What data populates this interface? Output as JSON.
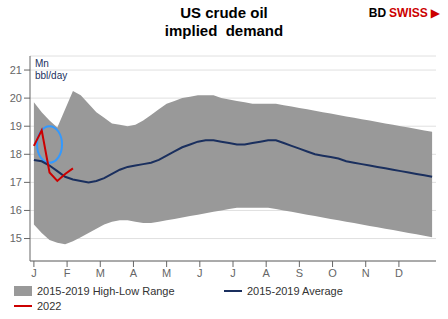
{
  "chart_data": {
    "type": "line",
    "title": "US crude oil\nimplied  demand",
    "ylabel": "Mn\nbbl/day",
    "x": [
      0,
      1,
      2,
      3,
      4,
      5,
      6,
      7,
      8,
      9,
      10,
      11,
      12,
      13,
      14,
      15,
      16,
      17,
      18,
      19,
      20,
      21,
      22,
      23,
      24,
      25,
      26,
      27,
      28,
      29,
      30,
      31,
      32,
      33,
      34,
      35,
      36,
      37,
      38,
      39,
      40,
      41,
      42,
      43,
      44,
      45,
      46,
      47,
      48,
      49,
      50,
      51
    ],
    "xlim": [
      -0.5,
      51.5
    ],
    "xticks": [
      {
        "value": 0,
        "label": "J"
      },
      {
        "value": 4.25,
        "label": "F"
      },
      {
        "value": 8.5,
        "label": "M"
      },
      {
        "value": 12.75,
        "label": "A"
      },
      {
        "value": 17,
        "label": "M"
      },
      {
        "value": 21.25,
        "label": "J"
      },
      {
        "value": 25.5,
        "label": "J"
      },
      {
        "value": 29.75,
        "label": "A"
      },
      {
        "value": 34,
        "label": "S"
      },
      {
        "value": 38.25,
        "label": "O"
      },
      {
        "value": 42.5,
        "label": "N"
      },
      {
        "value": 46.75,
        "label": "D"
      }
    ],
    "ylim": [
      14.2,
      21.5
    ],
    "yticks": [
      15,
      16,
      17,
      18,
      19,
      20,
      21
    ],
    "grid": true,
    "legend": "bottom",
    "series": [
      {
        "name": "2015-2019 High-Low Range",
        "type": "band",
        "color": "#999999",
        "low": [
          15.5,
          15.2,
          14.95,
          14.85,
          14.8,
          14.9,
          15.05,
          15.2,
          15.35,
          15.5,
          15.6,
          15.65,
          15.65,
          15.6,
          15.55,
          15.55,
          15.6,
          15.65,
          15.7,
          15.75,
          15.8,
          15.85,
          15.9,
          15.95,
          16.0,
          16.05,
          16.1,
          16.1,
          16.1,
          16.1,
          16.1,
          16.05,
          16.0,
          15.95,
          15.9,
          15.85,
          15.8,
          15.75,
          15.7,
          15.65,
          15.6,
          15.55,
          15.5,
          15.45,
          15.4,
          15.35,
          15.3,
          15.25,
          15.2,
          15.15,
          15.1,
          15.05
        ],
        "high": [
          19.85,
          19.5,
          19.2,
          18.95,
          19.6,
          20.25,
          20.1,
          19.8,
          19.5,
          19.3,
          19.1,
          19.05,
          19.0,
          19.05,
          19.2,
          19.4,
          19.6,
          19.8,
          19.9,
          20.0,
          20.05,
          20.1,
          20.1,
          20.1,
          20.0,
          19.95,
          19.9,
          19.85,
          19.8,
          19.8,
          19.8,
          19.8,
          19.75,
          19.7,
          19.65,
          19.6,
          19.55,
          19.5,
          19.45,
          19.4,
          19.35,
          19.3,
          19.25,
          19.2,
          19.15,
          19.1,
          19.05,
          19.0,
          18.95,
          18.9,
          18.85,
          18.8
        ]
      },
      {
        "name": "2015-2019 Average",
        "type": "line",
        "color": "#1a2f5e",
        "values": [
          17.8,
          17.75,
          17.6,
          17.4,
          17.2,
          17.1,
          17.05,
          17.0,
          17.05,
          17.15,
          17.3,
          17.45,
          17.55,
          17.6,
          17.65,
          17.7,
          17.8,
          17.95,
          18.1,
          18.25,
          18.35,
          18.45,
          18.5,
          18.5,
          18.45,
          18.4,
          18.35,
          18.35,
          18.4,
          18.45,
          18.5,
          18.5,
          18.4,
          18.3,
          18.2,
          18.1,
          18.0,
          17.95,
          17.9,
          17.85,
          17.75,
          17.7,
          17.65,
          17.6,
          17.55,
          17.5,
          17.45,
          17.4,
          17.35,
          17.3,
          17.25,
          17.2
        ]
      },
      {
        "name": "2022",
        "type": "line",
        "color": "#cc0000",
        "x": [
          0,
          1,
          2,
          3,
          4,
          5
        ],
        "values": [
          18.3,
          18.85,
          17.35,
          17.05,
          17.3,
          17.5
        ]
      }
    ],
    "highlight": {
      "cx": 2.0,
      "cy": 18.35,
      "width": 3.2,
      "height": 1.3,
      "color": "#3399ff"
    },
    "logo": [
      {
        "text": "BD",
        "color": "#000000"
      },
      {
        "text": "SWISS",
        "color": "#cc0000"
      },
      {
        "text": "▶",
        "color": "#cc0000"
      }
    ]
  }
}
